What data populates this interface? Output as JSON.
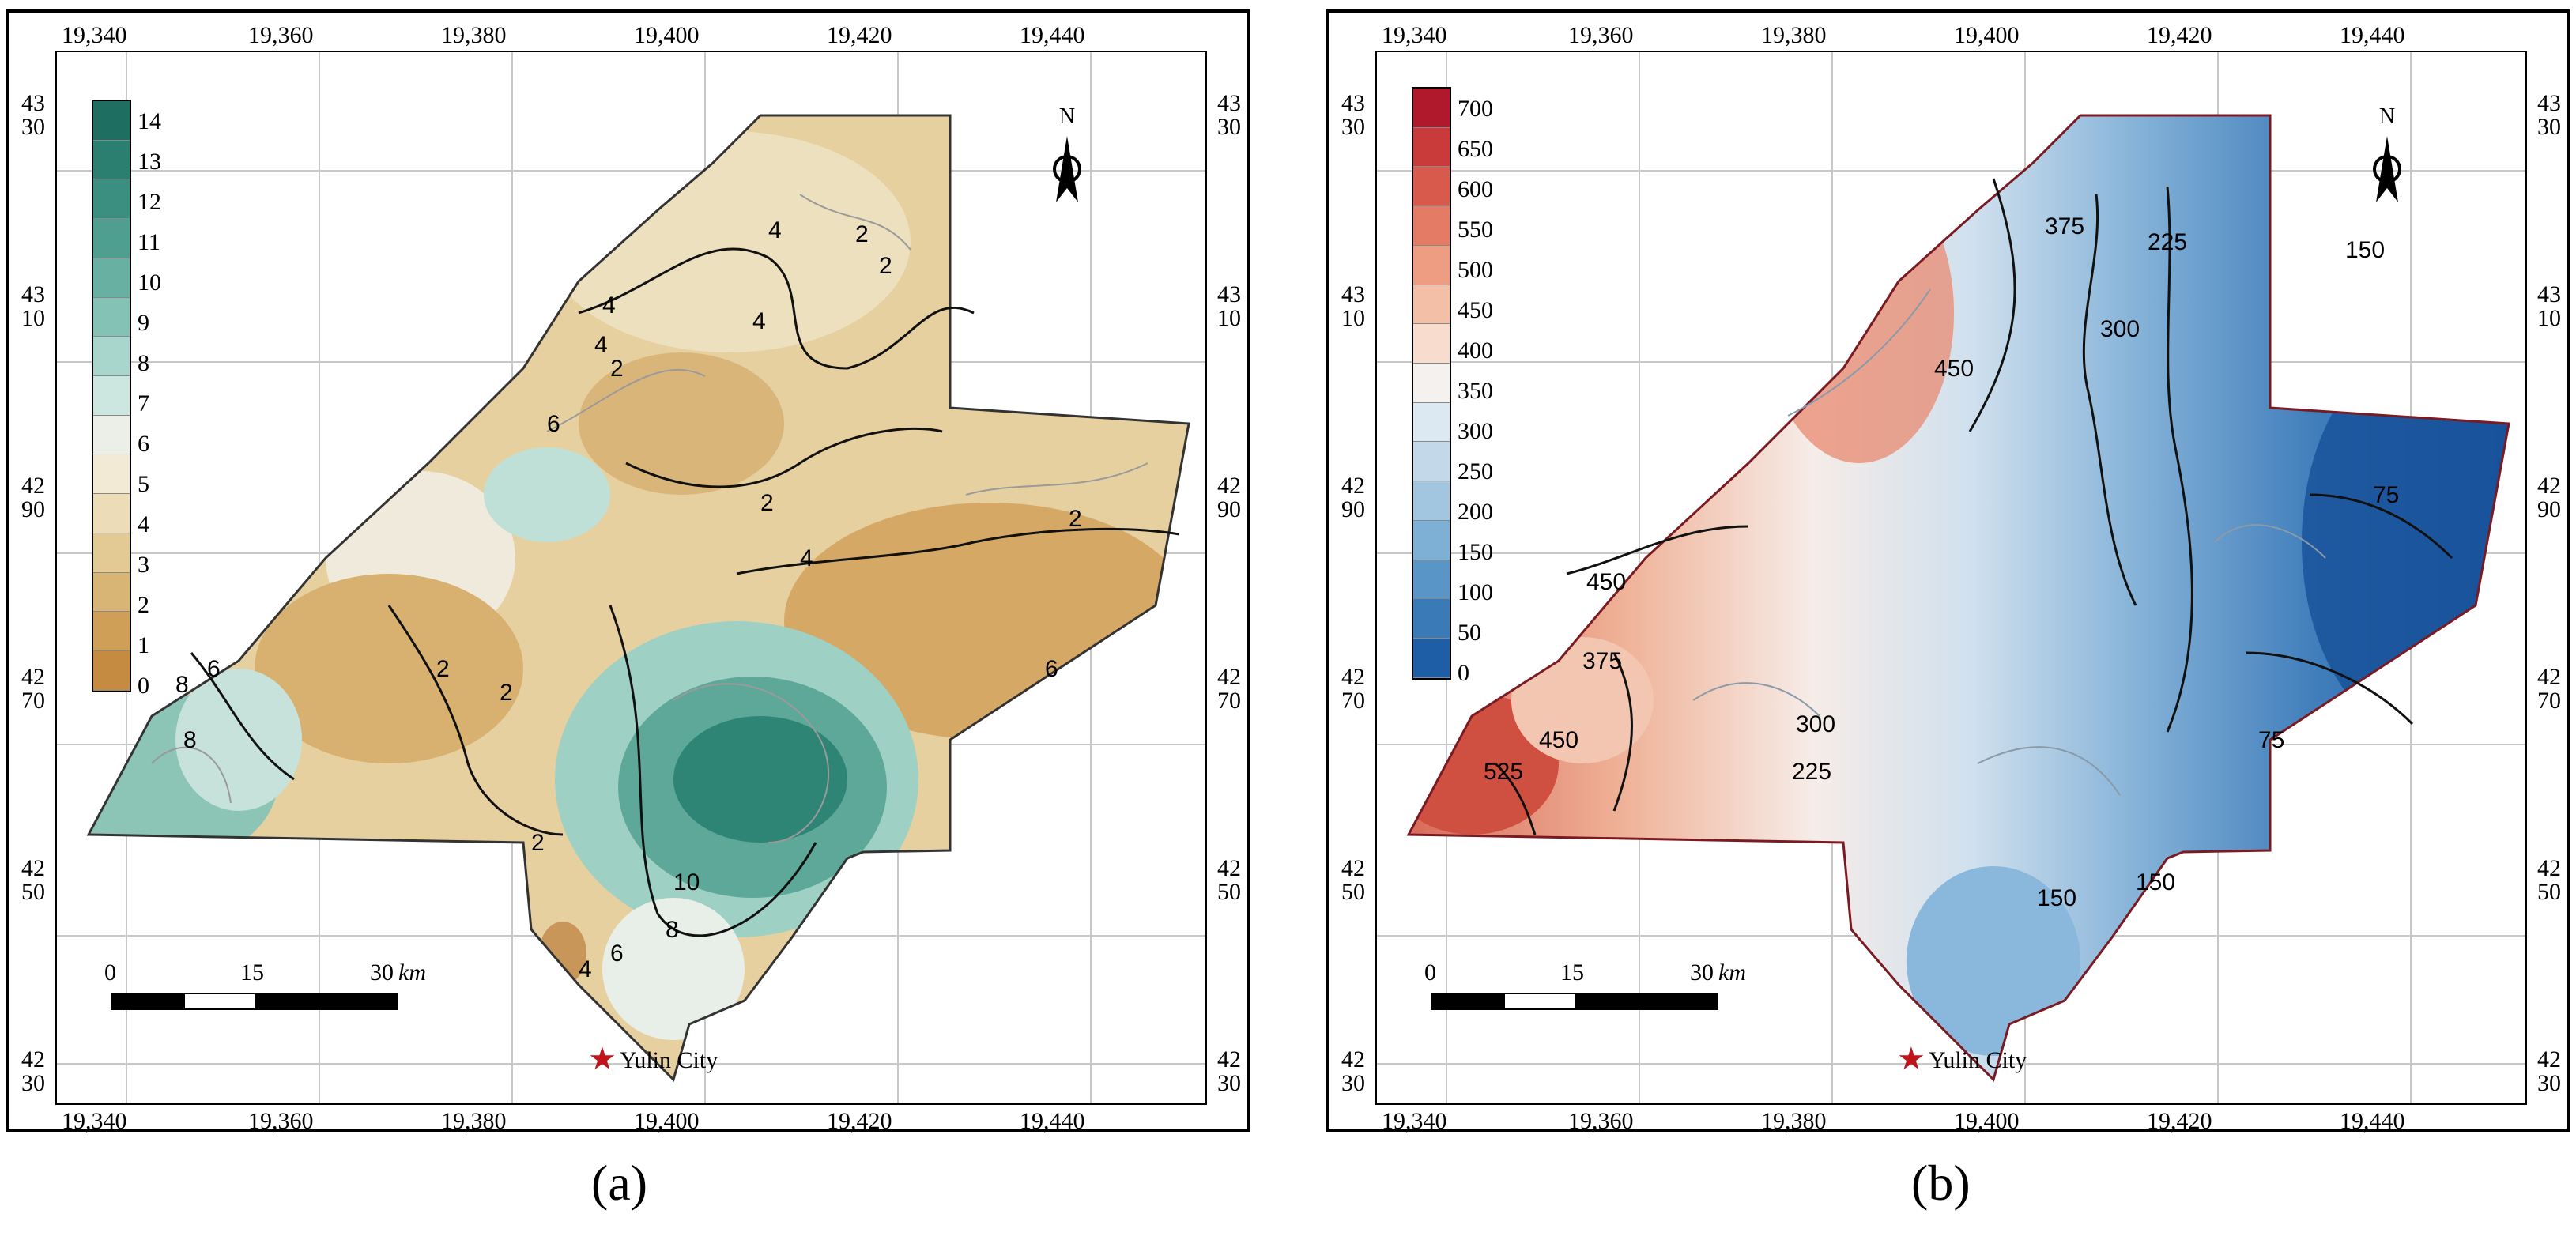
{
  "figure": {
    "panels": [
      {
        "id": "a",
        "caption": "(a)",
        "top_ticks": [
          "19,340",
          "19,360",
          "19,380",
          "19,400",
          "19,420",
          "19,440"
        ],
        "bottom_ticks": [
          "19,340",
          "19,360",
          "19,380",
          "19,400",
          "19,420",
          "19,440"
        ],
        "lat_ticks": [
          [
            "43",
            "30"
          ],
          [
            "43",
            "10"
          ],
          [
            "42",
            "90"
          ],
          [
            "42",
            "70"
          ],
          [
            "42",
            "50"
          ],
          [
            "42",
            "30"
          ]
        ],
        "legend_labels": [
          "14",
          "13",
          "12",
          "11",
          "10",
          "9",
          "8",
          "7",
          "6",
          "5",
          "4",
          "3",
          "2",
          "1",
          "0"
        ],
        "legend_colors": [
          "#1e6e62",
          "#2b7f71",
          "#3a8f80",
          "#4f9f90",
          "#67b0a2",
          "#84c2b6",
          "#a8d6cc",
          "#cbe7e0",
          "#ecefe8",
          "#f3ead6",
          "#ecdcb7",
          "#e3c993",
          "#d9b575",
          "#cf9f58",
          "#c58b40"
        ],
        "contour_labels": [
          "4",
          "2",
          "2",
          "4",
          "2",
          "4",
          "2",
          "2",
          "4",
          "2",
          "2",
          "8",
          "6",
          "8",
          "10",
          "8",
          "6",
          "4",
          "2",
          "6",
          "6",
          "4"
        ],
        "north": "N",
        "scale": {
          "zero": "0",
          "mid": "15",
          "end": "30",
          "unit": "km"
        },
        "city": "Yulin City"
      },
      {
        "id": "b",
        "caption": "(b)",
        "top_ticks": [
          "19,340",
          "19,360",
          "19,380",
          "19,400",
          "19,420",
          "19,440"
        ],
        "bottom_ticks": [
          "19,340",
          "19,360",
          "19,380",
          "19,400",
          "19,420",
          "19,440"
        ],
        "lat_ticks": [
          [
            "43",
            "30"
          ],
          [
            "43",
            "10"
          ],
          [
            "42",
            "90"
          ],
          [
            "42",
            "70"
          ],
          [
            "42",
            "50"
          ],
          [
            "42",
            "30"
          ]
        ],
        "legend_labels": [
          "700",
          "650",
          "600",
          "550",
          "500",
          "450",
          "400",
          "350",
          "300",
          "250",
          "200",
          "150",
          "100",
          "50",
          "0"
        ],
        "legend_colors": [
          "#b0182b",
          "#c93a3a",
          "#d85a4d",
          "#e47b64",
          "#ee9d83",
          "#f4bfa7",
          "#f8dccd",
          "#f5f1ee",
          "#dde9f2",
          "#c3d9ea",
          "#a2c5e0",
          "#7eafd5",
          "#5a95c7",
          "#3a7ab7",
          "#1e5ea7"
        ],
        "contour_labels": [
          "375",
          "225",
          "150",
          "450",
          "300",
          "75",
          "450",
          "375",
          "300",
          "525",
          "450",
          "225",
          "75",
          "150",
          "150"
        ],
        "north": "N",
        "scale": {
          "zero": "0",
          "mid": "15",
          "end": "30",
          "unit": "km"
        },
        "city": "Yulin City"
      }
    ]
  }
}
